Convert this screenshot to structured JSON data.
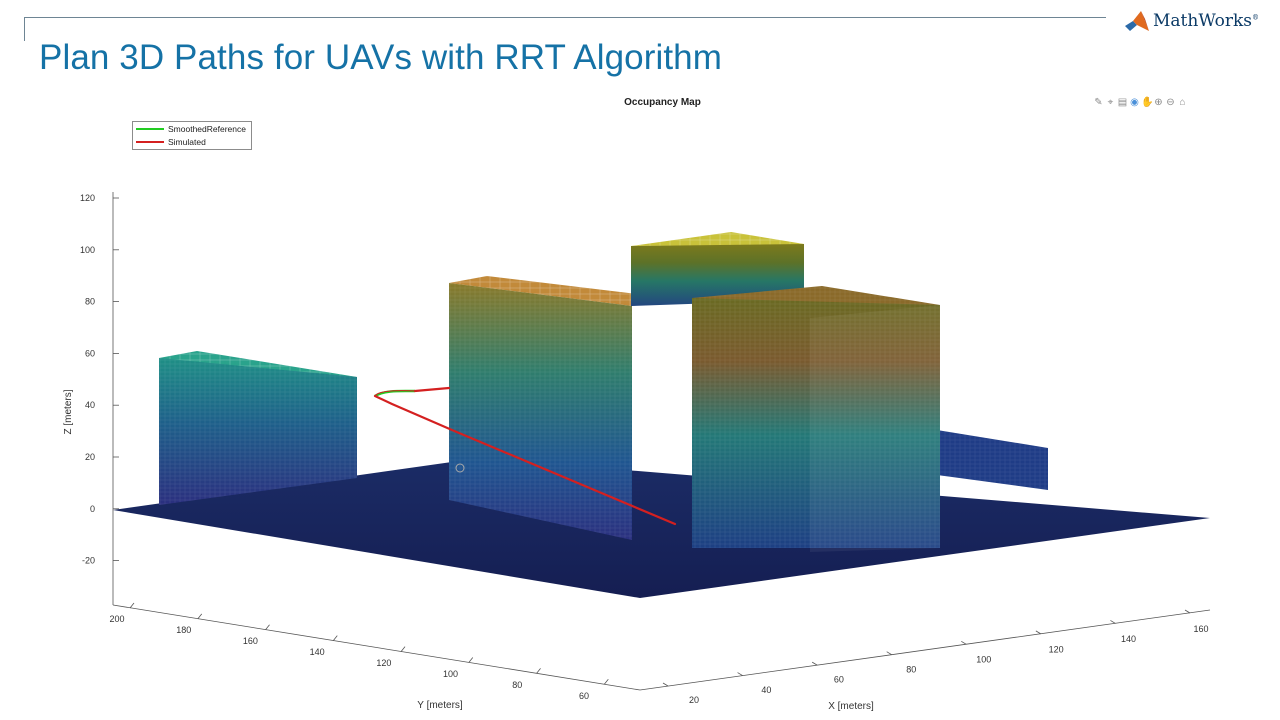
{
  "header": {
    "title": "Plan 3D Paths for UAVs with RRT Algorithm",
    "logo_text": "MathWorks"
  },
  "figure": {
    "title": "Occupancy Map",
    "legend": [
      {
        "label": "SmoothedReference",
        "color": "#22cc22"
      },
      {
        "label": "Simulated",
        "color": "#d42020"
      }
    ],
    "toolbar": [
      "brush-icon",
      "data-cursor-icon",
      "pan-icon",
      "rotate-icon",
      "hand-icon",
      "zoom-in-icon",
      "zoom-out-icon",
      "home-icon"
    ]
  },
  "chart_data": {
    "type": "3d-surface",
    "title": "Occupancy Map",
    "xlabel": "X [meters]",
    "ylabel": "Y [meters]",
    "zlabel": "Z [meters]",
    "x_ticks": [
      "20",
      "40",
      "60",
      "80",
      "100",
      "120",
      "140",
      "160"
    ],
    "y_ticks": [
      "200",
      "180",
      "160",
      "140",
      "120",
      "100",
      "80",
      "60"
    ],
    "z_ticks": [
      "120",
      "100",
      "80",
      "60",
      "40",
      "20",
      "0",
      "-20"
    ],
    "series": [
      {
        "name": "SmoothedReference",
        "color": "#22cc22"
      },
      {
        "name": "Simulated",
        "color": "#d42020"
      }
    ],
    "colormap": "parula"
  }
}
